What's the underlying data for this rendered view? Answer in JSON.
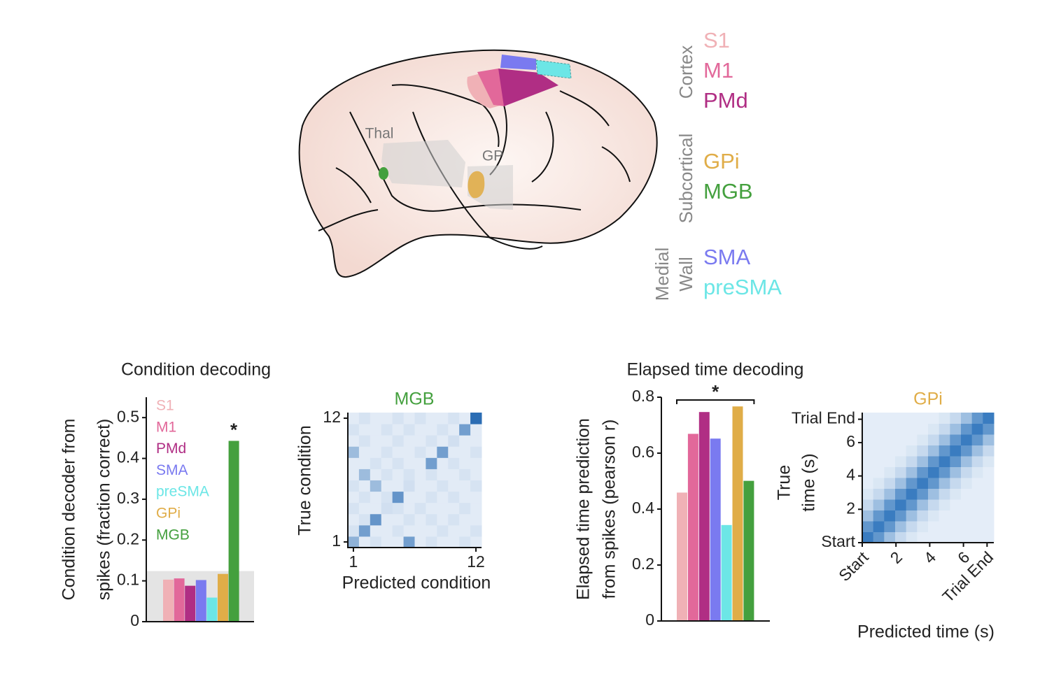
{
  "brain": {
    "labels": {
      "thal": "Thal",
      "gp": "GP"
    },
    "groups": [
      {
        "lines": [
          "Cortex"
        ],
        "regions": [
          {
            "name": "S1",
            "color": "#f0b1b6"
          },
          {
            "name": "M1",
            "color": "#e2689a"
          },
          {
            "name": "PMd",
            "color": "#b02e84"
          }
        ]
      },
      {
        "lines": [
          "Subcortical"
        ],
        "regions": [
          {
            "name": "GPi",
            "color": "#e0ad48"
          },
          {
            "name": "MGB",
            "color": "#44a03e"
          }
        ]
      },
      {
        "lines": [
          "Medial",
          "Wall"
        ],
        "regions": [
          {
            "name": "SMA",
            "color": "#7a7af0"
          },
          {
            "name": "preSMA",
            "color": "#6ce6e6"
          }
        ]
      }
    ]
  },
  "chart_data": [
    {
      "type": "bar",
      "title": "Condition decoding",
      "ylabel": [
        "Condition decoder from",
        "spikes (fraction correct)"
      ],
      "categories": [
        "S1",
        "M1",
        "PMd",
        "SMA",
        "preSMA",
        "GPi",
        "MGB"
      ],
      "values": [
        0.103,
        0.106,
        0.088,
        0.102,
        0.059,
        0.117,
        0.443
      ],
      "colors": [
        "#f0b1b6",
        "#e2689a",
        "#b02e84",
        "#7a7af0",
        "#6ce6e6",
        "#e0ad48",
        "#44a03e"
      ],
      "chance_level": 0.124,
      "annotation": "*",
      "legend": "upper left",
      "ylim": [
        0,
        0.55
      ],
      "yticks": [
        0,
        0.1,
        0.2,
        0.3,
        0.4,
        0.5
      ]
    },
    {
      "type": "heatmap",
      "title": "MGB",
      "title_color": "#44a03e",
      "xlabel": "Predicted condition",
      "ylabel": [
        "True condition"
      ],
      "xlim": [
        0.5,
        12.5
      ],
      "ylim": [
        0.5,
        12.5
      ],
      "xticks": [
        1,
        12
      ],
      "yticks": [
        1,
        12
      ],
      "cmap": [
        "#f3f7fc",
        "#2b6db4"
      ],
      "clim": [
        0,
        0.7
      ],
      "matrix": [
        [
          0.35,
          0.06,
          0.1,
          0.06,
          0.06,
          0.45,
          0.06,
          0.1,
          0.06,
          0.06,
          0.1,
          0.06
        ],
        [
          0.1,
          0.45,
          0.06,
          0.06,
          0.1,
          0.06,
          0.06,
          0.06,
          0.1,
          0.06,
          0.06,
          0.1
        ],
        [
          0.06,
          0.1,
          0.5,
          0.06,
          0.06,
          0.1,
          0.06,
          0.1,
          0.06,
          0.1,
          0.06,
          0.06
        ],
        [
          0.1,
          0.06,
          0.06,
          0.12,
          0.1,
          0.06,
          0.1,
          0.06,
          0.06,
          0.06,
          0.1,
          0.06
        ],
        [
          0.06,
          0.1,
          0.06,
          0.1,
          0.5,
          0.06,
          0.06,
          0.1,
          0.06,
          0.1,
          0.06,
          0.06
        ],
        [
          0.1,
          0.06,
          0.3,
          0.06,
          0.06,
          0.12,
          0.06,
          0.06,
          0.1,
          0.06,
          0.06,
          0.1
        ],
        [
          0.06,
          0.3,
          0.06,
          0.1,
          0.06,
          0.1,
          0.06,
          0.1,
          0.06,
          0.06,
          0.1,
          0.06
        ],
        [
          0.06,
          0.06,
          0.1,
          0.06,
          0.1,
          0.06,
          0.06,
          0.45,
          0.06,
          0.1,
          0.06,
          0.06
        ],
        [
          0.3,
          0.06,
          0.06,
          0.1,
          0.06,
          0.06,
          0.1,
          0.06,
          0.45,
          0.06,
          0.06,
          0.1
        ],
        [
          0.06,
          0.1,
          0.06,
          0.06,
          0.1,
          0.06,
          0.06,
          0.1,
          0.06,
          0.12,
          0.06,
          0.06
        ],
        [
          0.1,
          0.06,
          0.06,
          0.1,
          0.06,
          0.1,
          0.06,
          0.06,
          0.1,
          0.06,
          0.45,
          0.06
        ],
        [
          0.06,
          0.1,
          0.06,
          0.06,
          0.1,
          0.06,
          0.1,
          0.06,
          0.06,
          0.1,
          0.06,
          0.7
        ]
      ]
    },
    {
      "type": "bar",
      "title": "Elapsed time decoding",
      "ylabel": [
        "Elapsed time prediction",
        "from spikes (pearson r)"
      ],
      "categories": [
        "S1",
        "M1",
        "PMd",
        "SMA",
        "preSMA",
        "GPi",
        "MGB"
      ],
      "values": [
        0.459,
        0.669,
        0.747,
        0.652,
        0.343,
        0.767,
        0.501
      ],
      "colors": [
        "#f0b1b6",
        "#e2689a",
        "#b02e84",
        "#7a7af0",
        "#6ce6e6",
        "#e0ad48",
        "#44a03e"
      ],
      "annotation": "*",
      "ylim": [
        0,
        0.8
      ],
      "yticks": [
        0,
        0.2,
        0.4,
        0.6,
        0.8
      ]
    },
    {
      "type": "heatmap",
      "title": "GPi",
      "title_color": "#e0ad48",
      "xlabel": "Predicted time (s)",
      "ylabel": [
        "True",
        "time (s)"
      ],
      "xlim": [
        0,
        7.8
      ],
      "ylim": [
        0,
        7.8
      ],
      "xticks": [
        {
          "value": 0,
          "label": "Start"
        },
        2,
        4,
        6,
        {
          "value": 7.4,
          "label": "Trial End"
        }
      ],
      "yticks": [
        {
          "value": 0,
          "label": "Start"
        },
        2,
        4,
        6,
        {
          "value": 7.4,
          "label": "Trial End"
        }
      ],
      "cmap": [
        "#eef4fb",
        "#3a7cc0"
      ],
      "clim": [
        0,
        0.9
      ],
      "matrix": [
        [
          0.9,
          0.7,
          0.4,
          0.2,
          0.1,
          0.05,
          0.05,
          0.05,
          0.05,
          0.05,
          0.05,
          0.05
        ],
        [
          0.7,
          0.9,
          0.7,
          0.4,
          0.2,
          0.1,
          0.05,
          0.05,
          0.05,
          0.05,
          0.05,
          0.05
        ],
        [
          0.4,
          0.7,
          0.9,
          0.7,
          0.4,
          0.2,
          0.1,
          0.05,
          0.05,
          0.05,
          0.05,
          0.05
        ],
        [
          0.2,
          0.4,
          0.7,
          0.9,
          0.7,
          0.4,
          0.2,
          0.1,
          0.05,
          0.05,
          0.05,
          0.05
        ],
        [
          0.1,
          0.2,
          0.4,
          0.7,
          0.9,
          0.7,
          0.4,
          0.2,
          0.1,
          0.05,
          0.05,
          0.05
        ],
        [
          0.05,
          0.1,
          0.2,
          0.4,
          0.7,
          0.9,
          0.7,
          0.4,
          0.2,
          0.1,
          0.05,
          0.05
        ],
        [
          0.05,
          0.05,
          0.1,
          0.2,
          0.4,
          0.7,
          0.9,
          0.7,
          0.4,
          0.2,
          0.1,
          0.05
        ],
        [
          0.05,
          0.05,
          0.05,
          0.1,
          0.2,
          0.4,
          0.7,
          0.9,
          0.7,
          0.4,
          0.2,
          0.1
        ],
        [
          0.05,
          0.05,
          0.05,
          0.05,
          0.1,
          0.2,
          0.4,
          0.7,
          0.9,
          0.7,
          0.4,
          0.2
        ],
        [
          0.05,
          0.05,
          0.05,
          0.05,
          0.05,
          0.1,
          0.2,
          0.4,
          0.7,
          0.9,
          0.7,
          0.4
        ],
        [
          0.05,
          0.05,
          0.05,
          0.05,
          0.05,
          0.05,
          0.1,
          0.2,
          0.4,
          0.7,
          0.9,
          0.7
        ],
        [
          0.05,
          0.05,
          0.05,
          0.05,
          0.05,
          0.05,
          0.05,
          0.1,
          0.2,
          0.4,
          0.7,
          0.9
        ]
      ]
    }
  ]
}
